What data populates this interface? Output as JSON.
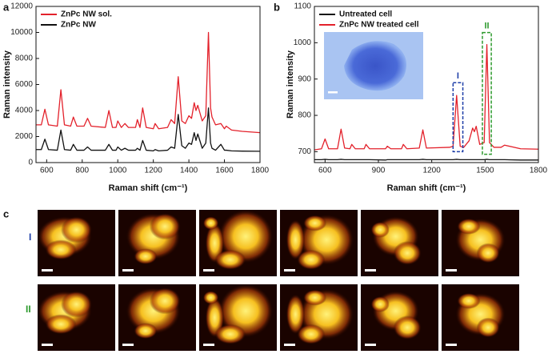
{
  "chart_data": [
    {
      "type": "line",
      "panel_label": "a",
      "x_label": "Raman shift (cm⁻¹)",
      "y_label": "Raman intensity",
      "x": [
        540,
        570,
        590,
        610,
        660,
        680,
        700,
        735,
        750,
        770,
        810,
        830,
        850,
        930,
        950,
        970,
        990,
        1000,
        1020,
        1040,
        1060,
        1100,
        1110,
        1125,
        1140,
        1160,
        1200,
        1210,
        1230,
        1280,
        1300,
        1320,
        1340,
        1360,
        1380,
        1400,
        1415,
        1430,
        1440,
        1450,
        1475,
        1495,
        1510,
        1522,
        1530,
        1550,
        1580,
        1600,
        1610,
        1640,
        1700,
        1800
      ],
      "series": [
        {
          "name": "ZnPc NW sol.",
          "color": "#e3212b",
          "values": [
            2900,
            2900,
            4100,
            2900,
            2800,
            5600,
            2900,
            2800,
            3500,
            2800,
            2800,
            3400,
            2800,
            2700,
            4000,
            2700,
            2700,
            3200,
            2700,
            3000,
            2700,
            2700,
            3300,
            2700,
            4200,
            2700,
            2600,
            3000,
            2600,
            2700,
            3300,
            3000,
            6600,
            3200,
            3000,
            3600,
            3400,
            4600,
            4000,
            4400,
            3200,
            3600,
            10000,
            4200,
            3500,
            2900,
            3000,
            2600,
            2800,
            2500,
            2400,
            2300
          ]
        },
        {
          "name": "ZnPc NW",
          "color": "#111111",
          "values": [
            1000,
            1000,
            1800,
            1000,
            950,
            2500,
            1000,
            950,
            1400,
            950,
            950,
            1200,
            950,
            950,
            1400,
            950,
            950,
            1200,
            950,
            1100,
            950,
            950,
            1100,
            950,
            1700,
            950,
            900,
            1000,
            900,
            950,
            1200,
            1100,
            3700,
            1300,
            1100,
            1500,
            1400,
            2300,
            1700,
            2200,
            1100,
            1500,
            4200,
            1500,
            1100,
            950,
            1400,
            950,
            950,
            900,
            880,
            870
          ]
        }
      ],
      "xlim": [
        540,
        1800
      ],
      "xticks": [
        600,
        800,
        1000,
        1200,
        1400,
        1600,
        1800
      ],
      "ylim": [
        0,
        12000
      ],
      "yticks": [
        0,
        2000,
        4000,
        6000,
        8000,
        10000,
        12000
      ],
      "legend": "upper left"
    },
    {
      "type": "line",
      "panel_label": "b",
      "x_label": "Raman shift (cm⁻¹)",
      "y_label": "Raman intensity",
      "x": [
        540,
        580,
        600,
        620,
        670,
        690,
        710,
        740,
        750,
        770,
        820,
        830,
        850,
        940,
        950,
        970,
        1030,
        1040,
        1060,
        1130,
        1150,
        1170,
        1300,
        1320,
        1340,
        1360,
        1380,
        1410,
        1430,
        1440,
        1450,
        1470,
        1495,
        1510,
        1525,
        1550,
        1590,
        1610,
        1700,
        1800
      ],
      "series": [
        {
          "name": "Untreated cell",
          "color": "#111111",
          "values": [
            678,
            678,
            679,
            678,
            678,
            679,
            678,
            678,
            678,
            678,
            678,
            678,
            678,
            677,
            678,
            678,
            678,
            678,
            678,
            678,
            679,
            678,
            678,
            678,
            679,
            678,
            678,
            678,
            678,
            678,
            678,
            678,
            678,
            679,
            678,
            678,
            678,
            678,
            677,
            677
          ]
        },
        {
          "name": "ZnPc NW treated cell",
          "color": "#e3212b",
          "values": [
            705,
            708,
            735,
            708,
            708,
            762,
            710,
            708,
            720,
            708,
            708,
            720,
            708,
            708,
            715,
            708,
            708,
            720,
            708,
            710,
            760,
            710,
            712,
            715,
            855,
            715,
            712,
            730,
            765,
            755,
            770,
            720,
            725,
            995,
            725,
            712,
            712,
            718,
            708,
            707
          ]
        }
      ],
      "xlim": [
        540,
        1800
      ],
      "xticks": [
        600,
        900,
        1200,
        1500,
        1800
      ],
      "ylim": [
        670,
        1100
      ],
      "yticks": [
        700,
        800,
        900,
        1000,
        1100
      ],
      "legend": "upper left",
      "annotations": [
        {
          "text": "I",
          "color": "#1f3fa8",
          "xrange": [
            1320,
            1375
          ],
          "yrange": [
            700,
            890
          ]
        },
        {
          "text": "II",
          "color": "#2e9a2e",
          "xrange": [
            1485,
            1535
          ],
          "yrange": [
            693,
            1028
          ]
        }
      ]
    }
  ],
  "panel_c": {
    "label": "c",
    "rows": [
      "I",
      "II"
    ]
  }
}
